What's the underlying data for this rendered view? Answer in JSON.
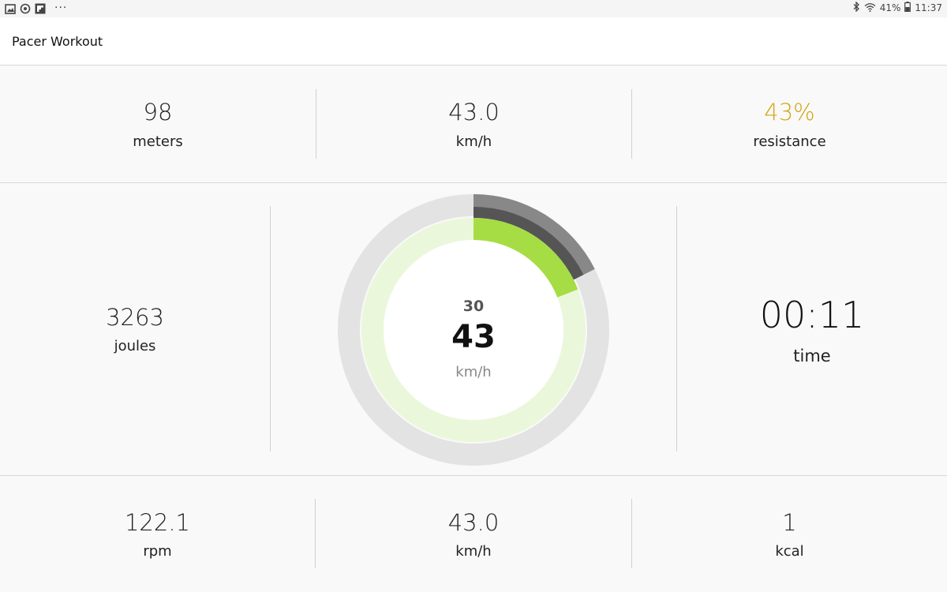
{
  "status_bar": {
    "left_icons": [
      "image-icon",
      "sync-icon",
      "flipboard-icon"
    ],
    "more": "···",
    "battery_percent": "41%",
    "time": "11:37"
  },
  "app": {
    "title": "Pacer Workout"
  },
  "top_row": [
    {
      "value": "98",
      "label": "meters"
    },
    {
      "value": "43.0",
      "label": "km/h"
    },
    {
      "value": "43%",
      "label": "resistance"
    }
  ],
  "middle_row": {
    "left": {
      "value": "3263",
      "label": "joules"
    },
    "gauge": {
      "target": "30",
      "value": "43",
      "unit": "km/h",
      "target_fraction": 0.176,
      "current_fraction": 0.191,
      "colors": {
        "outer_track": "#e3e3e3",
        "inner_track": "#ebf7db",
        "progress": "#a6dd45",
        "target_arc": "#888888",
        "target_inner": "#555555"
      }
    },
    "right": {
      "value": "00:11",
      "label": "time"
    }
  },
  "bottom_row": [
    {
      "value": "122.1",
      "label": "rpm"
    },
    {
      "value": "43.0",
      "label": "km/h"
    },
    {
      "value": "1",
      "label": "kcal"
    }
  ],
  "colors": {
    "accent": "#d3a614"
  }
}
